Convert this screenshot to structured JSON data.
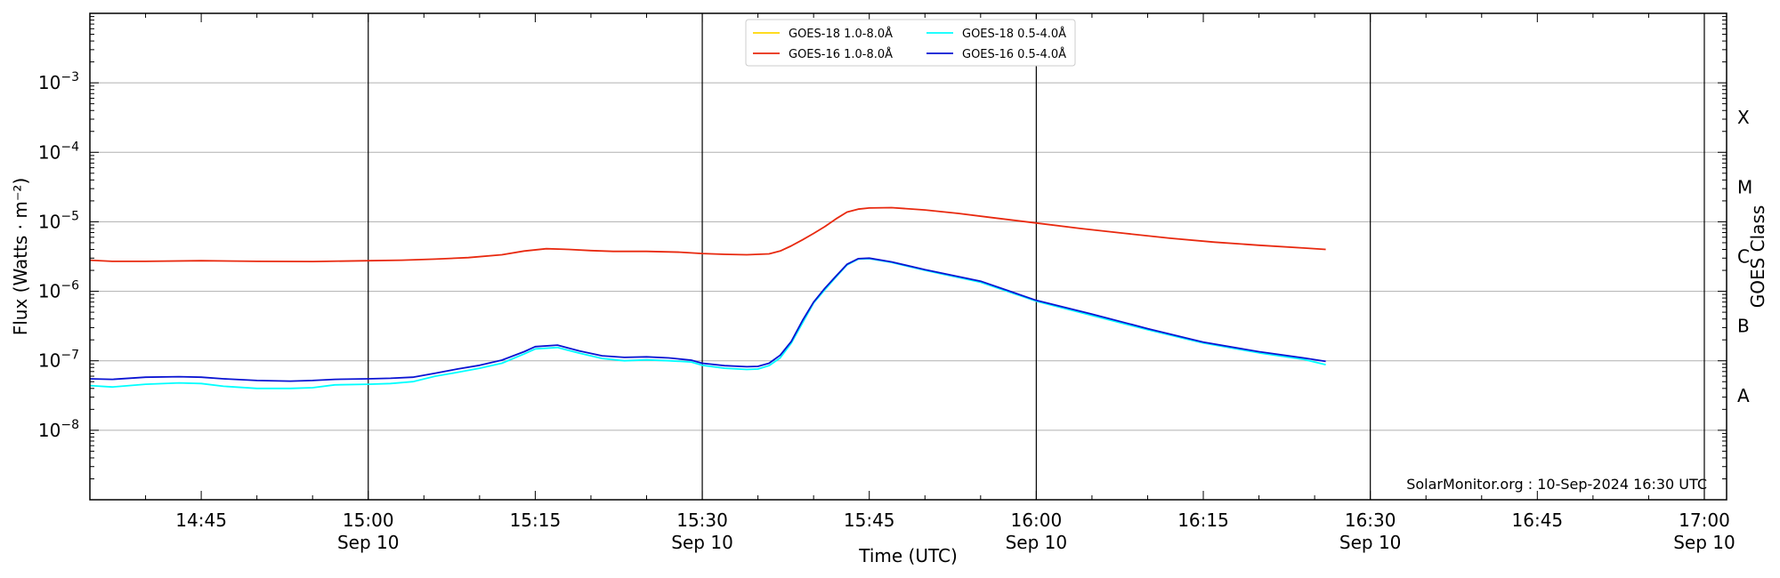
{
  "chart_data": {
    "type": "line",
    "title": "",
    "xlabel": "Time (UTC)",
    "ylabel": "Flux (Watts · m⁻²)",
    "y_scale": "log",
    "ylim": [
      1e-09,
      0.01
    ],
    "xlim": [
      "14:35",
      "17:02"
    ],
    "grid": "horizontal at decades",
    "legend_position": "top-center",
    "x_ticks": [
      {
        "time": "14:45",
        "label": "14:45",
        "date": ""
      },
      {
        "time": "15:00",
        "label": "15:00",
        "date": "Sep 10"
      },
      {
        "time": "15:15",
        "label": "15:15",
        "date": ""
      },
      {
        "time": "15:30",
        "label": "15:30",
        "date": "Sep 10"
      },
      {
        "time": "15:45",
        "label": "15:45",
        "date": ""
      },
      {
        "time": "16:00",
        "label": "16:00",
        "date": "Sep 10"
      },
      {
        "time": "16:15",
        "label": "16:15",
        "date": ""
      },
      {
        "time": "16:30",
        "label": "16:30",
        "date": "Sep 10"
      },
      {
        "time": "16:45",
        "label": "16:45",
        "date": ""
      },
      {
        "time": "17:00",
        "label": "17:00",
        "date": "Sep 10"
      }
    ],
    "vertical_lines": [
      "15:00",
      "15:30",
      "16:00",
      "16:30",
      "17:00"
    ],
    "y_ticks": [
      {
        "value": 0.001,
        "base": "10",
        "exp": "−3"
      },
      {
        "value": 0.0001,
        "base": "10",
        "exp": "−4"
      },
      {
        "value": 1e-05,
        "base": "10",
        "exp": "−5"
      },
      {
        "value": 1e-06,
        "base": "10",
        "exp": "−6"
      },
      {
        "value": 1e-07,
        "base": "10",
        "exp": "−7"
      },
      {
        "value": 1e-08,
        "base": "10",
        "exp": "−8"
      }
    ],
    "right_axis": {
      "label": "GOES Class",
      "classes": [
        {
          "label": "X",
          "value": 0.000316
        },
        {
          "label": "M",
          "value": 3.16e-05
        },
        {
          "label": "C",
          "value": 3.16e-06
        },
        {
          "label": "B",
          "value": 3.16e-07
        },
        {
          "label": "A",
          "value": 3.16e-08
        }
      ]
    },
    "annotation": "SolarMonitor.org : 10-Sep-2024 16:30 UTC",
    "series": [
      {
        "name": "GOES-18 1.0-8.0Å",
        "color": "#ffd700",
        "points": []
      },
      {
        "name": "GOES-16 1.0-8.0Å",
        "color": "#e8290f",
        "points": [
          [
            "14:35",
            2.8e-06
          ],
          [
            "14:37",
            2.7e-06
          ],
          [
            "14:40",
            2.7e-06
          ],
          [
            "14:45",
            2.75e-06
          ],
          [
            "14:50",
            2.7e-06
          ],
          [
            "14:55",
            2.68e-06
          ],
          [
            "15:00",
            2.75e-06
          ],
          [
            "15:03",
            2.8e-06
          ],
          [
            "15:06",
            2.9e-06
          ],
          [
            "15:09",
            3.05e-06
          ],
          [
            "15:12",
            3.35e-06
          ],
          [
            "15:14",
            3.8e-06
          ],
          [
            "15:16",
            4.1e-06
          ],
          [
            "15:18",
            4e-06
          ],
          [
            "15:20",
            3.85e-06
          ],
          [
            "15:22",
            3.75e-06
          ],
          [
            "15:25",
            3.75e-06
          ],
          [
            "15:28",
            3.65e-06
          ],
          [
            "15:30",
            3.5e-06
          ],
          [
            "15:32",
            3.4e-06
          ],
          [
            "15:34",
            3.35e-06
          ],
          [
            "15:36",
            3.45e-06
          ],
          [
            "15:37",
            3.8e-06
          ],
          [
            "15:38",
            4.5e-06
          ],
          [
            "15:39",
            5.5e-06
          ],
          [
            "15:40",
            6.8e-06
          ],
          [
            "15:41",
            8.5e-06
          ],
          [
            "15:42",
            1.1e-05
          ],
          [
            "15:43",
            1.38e-05
          ],
          [
            "15:44",
            1.52e-05
          ],
          [
            "15:45",
            1.58e-05
          ],
          [
            "15:47",
            1.6e-05
          ],
          [
            "15:50",
            1.48e-05
          ],
          [
            "15:53",
            1.32e-05
          ],
          [
            "15:56",
            1.15e-05
          ],
          [
            "16:00",
            9.6e-06
          ],
          [
            "16:04",
            8e-06
          ],
          [
            "16:08",
            6.8e-06
          ],
          [
            "16:12",
            5.8e-06
          ],
          [
            "16:16",
            5.1e-06
          ],
          [
            "16:20",
            4.6e-06
          ],
          [
            "16:24",
            4.2e-06
          ],
          [
            "16:26",
            4e-06
          ]
        ]
      },
      {
        "name": "GOES-18 0.5-4.0Å",
        "color": "#00ffff",
        "points": [
          [
            "14:35",
            4.4e-08
          ],
          [
            "14:37",
            4.2e-08
          ],
          [
            "14:40",
            4.6e-08
          ],
          [
            "14:43",
            4.8e-08
          ],
          [
            "14:45",
            4.7e-08
          ],
          [
            "14:47",
            4.3e-08
          ],
          [
            "14:50",
            4e-08
          ],
          [
            "14:53",
            4e-08
          ],
          [
            "14:55",
            4.1e-08
          ],
          [
            "14:57",
            4.5e-08
          ],
          [
            "15:00",
            4.6e-08
          ],
          [
            "15:02",
            4.7e-08
          ],
          [
            "15:04",
            5e-08
          ],
          [
            "15:06",
            6e-08
          ],
          [
            "15:08",
            6.8e-08
          ],
          [
            "15:10",
            7.8e-08
          ],
          [
            "15:12",
            9.2e-08
          ],
          [
            "15:14",
            1.25e-07
          ],
          [
            "15:15",
            1.48e-07
          ],
          [
            "15:17",
            1.55e-07
          ],
          [
            "15:19",
            1.28e-07
          ],
          [
            "15:21",
            1.08e-07
          ],
          [
            "15:23",
            1e-07
          ],
          [
            "15:25",
            1.03e-07
          ],
          [
            "15:27",
            1e-07
          ],
          [
            "15:29",
            9.6e-08
          ],
          [
            "15:30",
            8.6e-08
          ],
          [
            "15:32",
            7.8e-08
          ],
          [
            "15:34",
            7.5e-08
          ],
          [
            "15:35",
            7.6e-08
          ],
          [
            "15:36",
            8.5e-08
          ],
          [
            "15:37",
            1.1e-07
          ],
          [
            "15:38",
            1.8e-07
          ],
          [
            "15:39",
            3.5e-07
          ],
          [
            "15:40",
            6.8e-07
          ],
          [
            "15:41",
            1.05e-06
          ],
          [
            "15:42",
            1.6e-06
          ],
          [
            "15:43",
            2.4e-06
          ],
          [
            "15:44",
            2.9e-06
          ],
          [
            "15:45",
            2.95e-06
          ],
          [
            "15:47",
            2.6e-06
          ],
          [
            "15:50",
            2e-06
          ],
          [
            "15:55",
            1.35e-06
          ],
          [
            "16:00",
            7.2e-07
          ],
          [
            "16:05",
            4.5e-07
          ],
          [
            "16:10",
            2.8e-07
          ],
          [
            "16:15",
            1.8e-07
          ],
          [
            "16:20",
            1.3e-07
          ],
          [
            "16:24",
            1.05e-07
          ],
          [
            "16:26",
            8.8e-08
          ]
        ]
      },
      {
        "name": "GOES-16 0.5-4.0Å",
        "color": "#0a14d2",
        "points": [
          [
            "14:35",
            5.5e-08
          ],
          [
            "14:37",
            5.4e-08
          ],
          [
            "14:40",
            5.8e-08
          ],
          [
            "14:43",
            5.9e-08
          ],
          [
            "14:45",
            5.8e-08
          ],
          [
            "14:47",
            5.5e-08
          ],
          [
            "14:50",
            5.2e-08
          ],
          [
            "14:53",
            5.1e-08
          ],
          [
            "14:55",
            5.2e-08
          ],
          [
            "14:57",
            5.4e-08
          ],
          [
            "15:00",
            5.5e-08
          ],
          [
            "15:02",
            5.6e-08
          ],
          [
            "15:04",
            5.8e-08
          ],
          [
            "15:06",
            6.6e-08
          ],
          [
            "15:08",
            7.6e-08
          ],
          [
            "15:10",
            8.6e-08
          ],
          [
            "15:12",
            1.02e-07
          ],
          [
            "15:14",
            1.35e-07
          ],
          [
            "15:15",
            1.6e-07
          ],
          [
            "15:17",
            1.68e-07
          ],
          [
            "15:19",
            1.38e-07
          ],
          [
            "15:21",
            1.18e-07
          ],
          [
            "15:23",
            1.12e-07
          ],
          [
            "15:25",
            1.14e-07
          ],
          [
            "15:27",
            1.1e-07
          ],
          [
            "15:29",
            1.02e-07
          ],
          [
            "15:30",
            9.2e-08
          ],
          [
            "15:32",
            8.5e-08
          ],
          [
            "15:34",
            8.2e-08
          ],
          [
            "15:35",
            8.3e-08
          ],
          [
            "15:36",
            9.2e-08
          ],
          [
            "15:37",
            1.2e-07
          ],
          [
            "15:38",
            1.9e-07
          ],
          [
            "15:39",
            3.8e-07
          ],
          [
            "15:40",
            7e-07
          ],
          [
            "15:41",
            1.1e-06
          ],
          [
            "15:42",
            1.65e-06
          ],
          [
            "15:43",
            2.45e-06
          ],
          [
            "15:44",
            2.95e-06
          ],
          [
            "15:45",
            3e-06
          ],
          [
            "15:47",
            2.65e-06
          ],
          [
            "15:50",
            2.05e-06
          ],
          [
            "15:55",
            1.4e-06
          ],
          [
            "16:00",
            7.4e-07
          ],
          [
            "16:05",
            4.7e-07
          ],
          [
            "16:10",
            2.9e-07
          ],
          [
            "16:15",
            1.85e-07
          ],
          [
            "16:20",
            1.35e-07
          ],
          [
            "16:24",
            1.1e-07
          ],
          [
            "16:26",
            9.8e-08
          ]
        ]
      }
    ]
  }
}
